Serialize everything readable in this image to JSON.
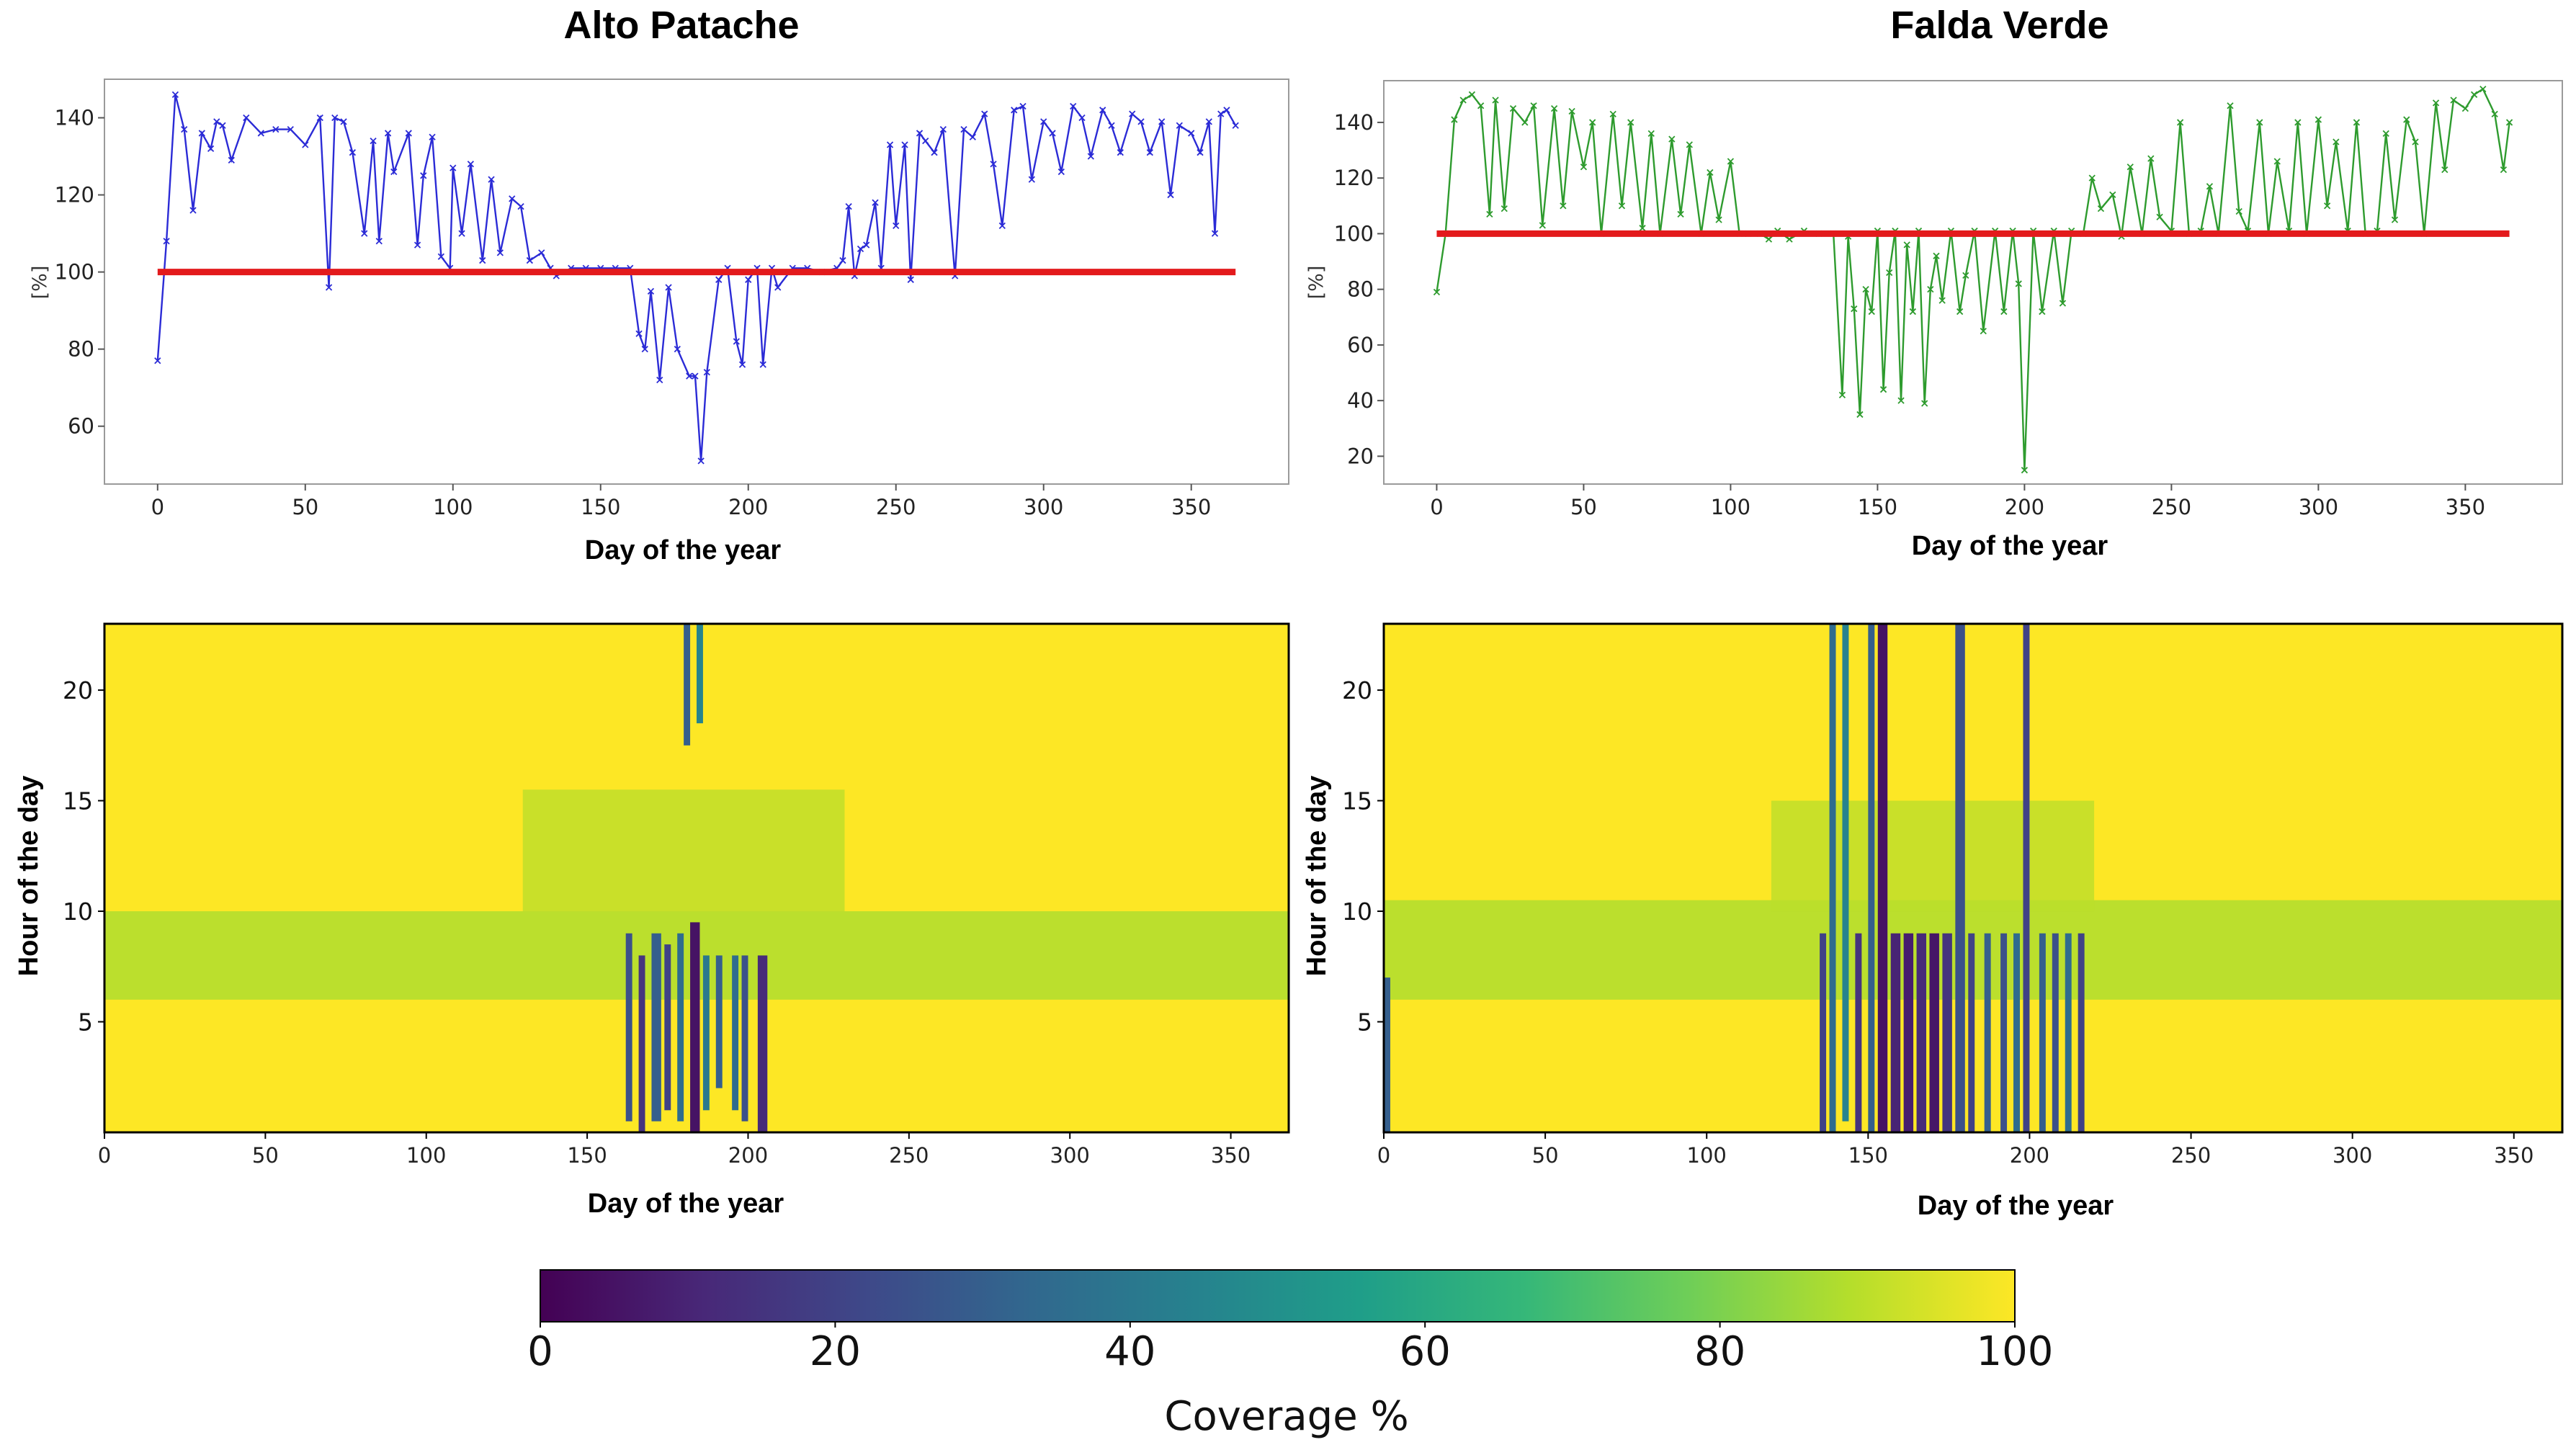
{
  "chart_data": [
    {
      "id": "alto-line",
      "type": "line",
      "title": "Alto Patache",
      "xlabel": "Day of the year",
      "ylabel": "[%]",
      "xlim": [
        -18,
        383
      ],
      "ylim": [
        45,
        150
      ],
      "xticks": [
        0,
        50,
        100,
        150,
        200,
        250,
        300,
        350
      ],
      "yticks": [
        60,
        80,
        100,
        120,
        140
      ],
      "colors": {
        "series": "#2b2bd6",
        "reference": "#e31a1c"
      },
      "reference_line": {
        "y": 100,
        "x": [
          0,
          365
        ]
      },
      "series": [
        {
          "x": [
            0,
            3,
            6,
            9,
            12,
            15,
            18,
            20,
            22,
            25,
            30,
            35,
            40,
            45,
            50,
            55,
            58,
            60,
            63,
            66,
            70,
            73,
            75,
            78,
            80,
            85,
            88,
            90,
            93,
            96,
            99,
            100,
            103,
            106,
            110,
            113,
            116,
            120,
            123,
            126,
            130,
            133,
            135,
            140,
            145,
            150,
            155,
            160,
            163,
            165,
            167,
            170,
            173,
            176,
            180,
            182,
            184,
            186,
            190,
            193,
            196,
            198,
            200,
            203,
            205,
            208,
            210,
            215,
            220,
            225,
            230,
            232,
            234,
            236,
            238,
            240,
            243,
            245,
            248,
            250,
            253,
            255,
            258,
            260,
            263,
            266,
            270,
            273,
            276,
            280,
            283,
            286,
            290,
            293,
            296,
            300,
            303,
            306,
            310,
            313,
            316,
            320,
            323,
            326,
            330,
            333,
            336,
            340,
            343,
            346,
            350,
            353,
            356,
            358,
            360,
            362,
            365
          ],
          "y": [
            77,
            108,
            146,
            137,
            116,
            136,
            132,
            139,
            138,
            129,
            140,
            136,
            137,
            137,
            133,
            140,
            96,
            140,
            139,
            131,
            110,
            134,
            108,
            136,
            126,
            136,
            107,
            125,
            135,
            104,
            101,
            127,
            110,
            128,
            103,
            124,
            105,
            119,
            117,
            103,
            105,
            101,
            99,
            101,
            101,
            101,
            101,
            101,
            84,
            80,
            95,
            72,
            96,
            80,
            73,
            73,
            51,
            74,
            98,
            101,
            82,
            76,
            98,
            101,
            76,
            101,
            96,
            101,
            101,
            100,
            101,
            103,
            117,
            99,
            106,
            107,
            118,
            101,
            133,
            112,
            133,
            98,
            136,
            134,
            131,
            137,
            99,
            137,
            135,
            141,
            128,
            112,
            142,
            143,
            124,
            139,
            136,
            126,
            143,
            140,
            130,
            142,
            138,
            131,
            141,
            139,
            131,
            139,
            120,
            138,
            136,
            131,
            139,
            110,
            141,
            142,
            138
          ]
        }
      ]
    },
    {
      "id": "falda-line",
      "type": "line",
      "title": "Falda Verde",
      "xlabel": "Day of the year",
      "ylabel": "[%]",
      "xlim": [
        -18,
        383
      ],
      "ylim": [
        10,
        155
      ],
      "xticks": [
        0,
        50,
        100,
        150,
        200,
        250,
        300,
        350
      ],
      "yticks": [
        20,
        40,
        60,
        80,
        100,
        120,
        140
      ],
      "colors": {
        "series": "#2e9b2e",
        "reference": "#e31a1c"
      },
      "reference_line": {
        "y": 100,
        "x": [
          0,
          365
        ]
      },
      "series": [
        {
          "x": [
            0,
            3,
            6,
            9,
            12,
            15,
            18,
            20,
            23,
            26,
            30,
            33,
            36,
            40,
            43,
            46,
            50,
            53,
            56,
            60,
            63,
            66,
            70,
            73,
            76,
            80,
            83,
            86,
            90,
            93,
            96,
            100,
            103,
            106,
            110,
            113,
            116,
            120,
            125,
            130,
            135,
            138,
            140,
            142,
            144,
            146,
            148,
            150,
            152,
            154,
            156,
            158,
            160,
            162,
            164,
            166,
            168,
            170,
            172,
            175,
            178,
            180,
            183,
            186,
            190,
            193,
            196,
            198,
            200,
            203,
            206,
            210,
            213,
            216,
            220,
            223,
            226,
            230,
            233,
            236,
            240,
            243,
            246,
            250,
            253,
            256,
            260,
            263,
            266,
            270,
            273,
            276,
            280,
            283,
            286,
            290,
            293,
            296,
            300,
            303,
            306,
            310,
            313,
            316,
            320,
            323,
            326,
            330,
            333,
            336,
            340,
            343,
            346,
            350,
            353,
            356,
            360,
            363,
            365
          ],
          "y": [
            79,
            100,
            141,
            148,
            150,
            146,
            107,
            148,
            109,
            145,
            140,
            146,
            103,
            145,
            110,
            144,
            124,
            140,
            100,
            143,
            110,
            140,
            102,
            136,
            100,
            134,
            107,
            132,
            100,
            122,
            105,
            126,
            100,
            100,
            100,
            98,
            101,
            98,
            101,
            100,
            100,
            42,
            99,
            73,
            35,
            80,
            72,
            101,
            44,
            86,
            101,
            40,
            96,
            72,
            101,
            39,
            80,
            92,
            76,
            101,
            72,
            85,
            101,
            65,
            101,
            72,
            101,
            82,
            15,
            101,
            72,
            101,
            75,
            101,
            100,
            120,
            109,
            114,
            99,
            124,
            100,
            127,
            106,
            101,
            140,
            100,
            101,
            117,
            100,
            146,
            108,
            101,
            140,
            100,
            126,
            101,
            140,
            100,
            141,
            110,
            133,
            101,
            140,
            100,
            101,
            136,
            105,
            141,
            133,
            100,
            147,
            123,
            148,
            145,
            150,
            152,
            143,
            123,
            140
          ]
        }
      ]
    },
    {
      "id": "alto-heatmap",
      "type": "heatmap",
      "xlabel": "Day of the year",
      "ylabel": "Hour of the day",
      "xlim": [
        0,
        368
      ],
      "ylim": [
        0,
        23
      ],
      "xticks": [
        0,
        50,
        100,
        150,
        200,
        250,
        300,
        350
      ],
      "yticks": [
        5,
        10,
        15,
        20
      ],
      "baseline_coverage": 100,
      "morning_band": {
        "hours": [
          6,
          10
        ],
        "coverage": 88
      },
      "afternoon_band": {
        "days": [
          130,
          230
        ],
        "hours": [
          10,
          15.5
        ],
        "coverage": 90
      },
      "low_streaks": [
        {
          "day": 162,
          "width": 2,
          "hours": [
            0.5,
            9
          ],
          "coverage": 25
        },
        {
          "day": 166,
          "width": 2,
          "hours": [
            0,
            8
          ],
          "coverage": 15
        },
        {
          "day": 170,
          "width": 3,
          "hours": [
            0.5,
            9
          ],
          "coverage": 30
        },
        {
          "day": 174,
          "width": 2,
          "hours": [
            1,
            8.5
          ],
          "coverage": 20
        },
        {
          "day": 178,
          "width": 2,
          "hours": [
            0.5,
            9
          ],
          "coverage": 35
        },
        {
          "day": 182,
          "width": 3,
          "hours": [
            0,
            9.5
          ],
          "coverage": 5
        },
        {
          "day": 186,
          "width": 2,
          "hours": [
            1,
            8
          ],
          "coverage": 40
        },
        {
          "day": 190,
          "width": 2,
          "hours": [
            2,
            8
          ],
          "coverage": 30
        },
        {
          "day": 195,
          "width": 2,
          "hours": [
            1,
            8
          ],
          "coverage": 35
        },
        {
          "day": 198,
          "width": 2,
          "hours": [
            0.5,
            8
          ],
          "coverage": 25
        },
        {
          "day": 203,
          "width": 3,
          "hours": [
            0,
            8
          ],
          "coverage": 12
        },
        {
          "day": 180,
          "width": 2,
          "hours": [
            17.5,
            23
          ],
          "coverage": 30
        },
        {
          "day": 184,
          "width": 2,
          "hours": [
            18.5,
            23
          ],
          "coverage": 45
        }
      ]
    },
    {
      "id": "falda-heatmap",
      "type": "heatmap",
      "xlabel": "Day of the year",
      "ylabel": "Hour of the day",
      "xlim": [
        0,
        365
      ],
      "ylim": [
        0,
        23
      ],
      "xticks": [
        0,
        50,
        100,
        150,
        200,
        250,
        300,
        350
      ],
      "yticks": [
        5,
        10,
        15,
        20
      ],
      "baseline_coverage": 100,
      "morning_band": {
        "hours": [
          6,
          10.5
        ],
        "coverage": 88
      },
      "afternoon_band": {
        "days": [
          120,
          220
        ],
        "hours": [
          10,
          15
        ],
        "coverage": 90
      },
      "low_streaks": [
        {
          "day": 0,
          "width": 2,
          "hours": [
            0,
            7
          ],
          "coverage": 30
        },
        {
          "day": 135,
          "width": 2,
          "hours": [
            0,
            9
          ],
          "coverage": 20
        },
        {
          "day": 138,
          "width": 2,
          "hours": [
            0,
            23
          ],
          "coverage": 35
        },
        {
          "day": 142,
          "width": 2,
          "hours": [
            0.5,
            23
          ],
          "coverage": 45
        },
        {
          "day": 146,
          "width": 2,
          "hours": [
            0,
            9
          ],
          "coverage": 15
        },
        {
          "day": 150,
          "width": 2,
          "hours": [
            0,
            23
          ],
          "coverage": 30
        },
        {
          "day": 153,
          "width": 3,
          "hours": [
            0,
            23
          ],
          "coverage": 5
        },
        {
          "day": 157,
          "width": 3,
          "hours": [
            0,
            9
          ],
          "coverage": 10
        },
        {
          "day": 161,
          "width": 3,
          "hours": [
            0,
            9
          ],
          "coverage": 8
        },
        {
          "day": 165,
          "width": 3,
          "hours": [
            0,
            9
          ],
          "coverage": 12
        },
        {
          "day": 169,
          "width": 3,
          "hours": [
            0,
            9
          ],
          "coverage": 6
        },
        {
          "day": 173,
          "width": 3,
          "hours": [
            0,
            9
          ],
          "coverage": 15
        },
        {
          "day": 177,
          "width": 3,
          "hours": [
            0,
            23
          ],
          "coverage": 25
        },
        {
          "day": 181,
          "width": 2,
          "hours": [
            0,
            9
          ],
          "coverage": 20
        },
        {
          "day": 186,
          "width": 2,
          "hours": [
            0,
            9
          ],
          "coverage": 30
        },
        {
          "day": 191,
          "width": 2,
          "hours": [
            0,
            9
          ],
          "coverage": 25
        },
        {
          "day": 195,
          "width": 2,
          "hours": [
            0,
            9
          ],
          "coverage": 35
        },
        {
          "day": 198,
          "width": 2,
          "hours": [
            0,
            23
          ],
          "coverage": 20
        },
        {
          "day": 203,
          "width": 2,
          "hours": [
            0,
            9
          ],
          "coverage": 30
        },
        {
          "day": 207,
          "width": 2,
          "hours": [
            0,
            9
          ],
          "coverage": 25
        },
        {
          "day": 211,
          "width": 2,
          "hours": [
            0,
            9
          ],
          "coverage": 35
        },
        {
          "day": 215,
          "width": 2,
          "hours": [
            0,
            9
          ],
          "coverage": 20
        }
      ]
    }
  ],
  "colorbar": {
    "label": "Coverage %",
    "ticks": [
      0,
      20,
      40,
      60,
      80,
      100
    ],
    "range": [
      0,
      100
    ],
    "colormap": "viridis",
    "stops": [
      "#440154",
      "#482878",
      "#3e4989",
      "#31688e",
      "#26828e",
      "#1f9e89",
      "#35b779",
      "#6ece58",
      "#b5de2b",
      "#fde725"
    ]
  }
}
